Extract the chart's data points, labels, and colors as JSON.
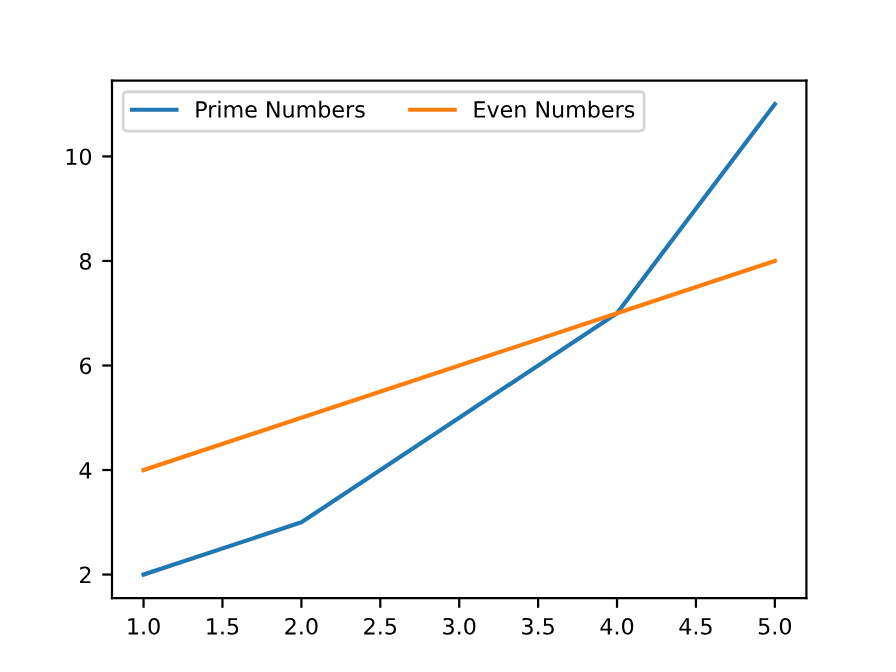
{
  "chart_data": {
    "type": "line",
    "x": [
      1,
      2,
      3,
      4,
      5
    ],
    "series": [
      {
        "name": "Prime Numbers",
        "color": "#1f77b4",
        "values": [
          2,
          3,
          5,
          7,
          11
        ]
      },
      {
        "name": "Even Numbers",
        "color": "#ff7f0e",
        "values": [
          4,
          5,
          6,
          7,
          8
        ]
      }
    ],
    "xlim": [
      0.8,
      5.2
    ],
    "xticks": [
      {
        "value": 1,
        "label": "1.0"
      },
      {
        "value": 1.5,
        "label": "1.5"
      },
      {
        "value": 2,
        "label": "2.0"
      },
      {
        "value": 2.5,
        "label": "2.5"
      },
      {
        "value": 3,
        "label": "3.0"
      },
      {
        "value": 3.5,
        "label": "3.5"
      },
      {
        "value": 4,
        "label": "4.0"
      },
      {
        "value": 4.5,
        "label": "4.5"
      },
      {
        "value": 5,
        "label": "5.0"
      }
    ],
    "ylim": [
      1.55,
      11.45
    ],
    "yticks": [
      2,
      4,
      6,
      8,
      10
    ],
    "legend": "top left",
    "grid": false,
    "marker": "none",
    "line_style": "solid"
  }
}
